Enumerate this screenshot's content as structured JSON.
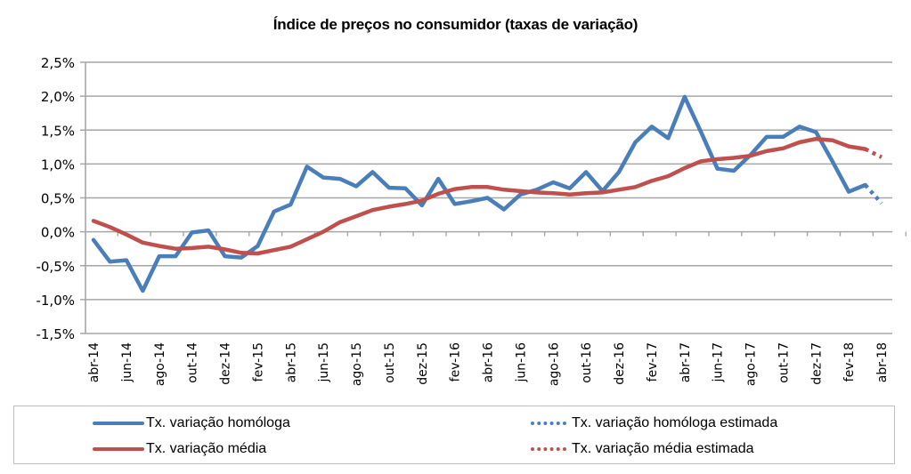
{
  "chart_data": {
    "type": "line",
    "title": "Índice de preços no consumidor  (taxas de variação)",
    "xlabel": "",
    "ylabel": "",
    "ylim": [
      -1.5,
      2.5
    ],
    "yticks": [
      "2,5%",
      "2,0%",
      "1,5%",
      "1,0%",
      "0,5%",
      "0,0%",
      "-0,5%",
      "-1,0%",
      "-1,5%"
    ],
    "ytick_values": [
      2.5,
      2.0,
      1.5,
      1.0,
      0.5,
      0.0,
      -0.5,
      -1.0,
      -1.5
    ],
    "grid": true,
    "x": [
      "abr-14",
      "mai-14",
      "jun-14",
      "jul-14",
      "ago-14",
      "set-14",
      "out-14",
      "nov-14",
      "dez-14",
      "jan-15",
      "fev-15",
      "mar-15",
      "abr-15",
      "mai-15",
      "jun-15",
      "jul-15",
      "ago-15",
      "set-15",
      "out-15",
      "nov-15",
      "dez-15",
      "jan-16",
      "fev-16",
      "mar-16",
      "abr-16",
      "mai-16",
      "jun-16",
      "jul-16",
      "ago-16",
      "set-16",
      "out-16",
      "nov-16",
      "dez-16",
      "jan-17",
      "fev-17",
      "mar-17",
      "abr-17",
      "mai-17",
      "jun-17",
      "jul-17",
      "ago-17",
      "set-17",
      "out-17",
      "nov-17",
      "dez-17",
      "jan-18",
      "fev-18",
      "mar-18",
      "abr-18"
    ],
    "xtick_labels": [
      "abr-14",
      "jun-14",
      "ago-14",
      "out-14",
      "dez-14",
      "fev-15",
      "abr-15",
      "jun-15",
      "ago-15",
      "out-15",
      "dez-15",
      "fev-16",
      "abr-16",
      "jun-16",
      "ago-16",
      "out-16",
      "dez-16",
      "fev-17",
      "abr-17",
      "jun-17",
      "ago-17",
      "out-17",
      "dez-17",
      "fev-18",
      "abr-18"
    ],
    "series": [
      {
        "name": "Tx. variação homóloga",
        "color": "#4a7ebb",
        "style": "solid",
        "values": [
          -0.12,
          -0.44,
          -0.42,
          -0.87,
          -0.36,
          -0.36,
          -0.01,
          0.02,
          -0.36,
          -0.38,
          -0.21,
          0.3,
          0.4,
          0.96,
          0.8,
          0.78,
          0.67,
          0.88,
          0.65,
          0.64,
          0.39,
          0.78,
          0.41,
          0.45,
          0.5,
          0.33,
          0.55,
          0.62,
          0.73,
          0.64,
          0.88,
          0.6,
          0.88,
          1.32,
          1.55,
          1.38,
          1.99,
          1.47,
          0.93,
          0.9,
          1.13,
          1.4,
          1.4,
          1.55,
          1.47,
          1.04,
          0.59,
          0.69,
          null
        ]
      },
      {
        "name": "Tx. variação homóloga estimada",
        "color": "#4a7ebb",
        "style": "dotted",
        "values": [
          null,
          null,
          null,
          null,
          null,
          null,
          null,
          null,
          null,
          null,
          null,
          null,
          null,
          null,
          null,
          null,
          null,
          null,
          null,
          null,
          null,
          null,
          null,
          null,
          null,
          null,
          null,
          null,
          null,
          null,
          null,
          null,
          null,
          null,
          null,
          null,
          null,
          null,
          null,
          null,
          null,
          null,
          null,
          null,
          null,
          null,
          null,
          0.69,
          0.42
        ]
      },
      {
        "name": "Tx. variação média",
        "color": "#c0504d",
        "style": "solid",
        "values": [
          0.16,
          0.07,
          -0.04,
          -0.16,
          -0.21,
          -0.25,
          -0.24,
          -0.22,
          -0.26,
          -0.31,
          -0.32,
          -0.27,
          -0.22,
          -0.11,
          0.0,
          0.14,
          0.23,
          0.32,
          0.37,
          0.41,
          0.46,
          0.56,
          0.63,
          0.66,
          0.66,
          0.62,
          0.6,
          0.58,
          0.57,
          0.55,
          0.57,
          0.58,
          0.62,
          0.66,
          0.75,
          0.82,
          0.94,
          1.04,
          1.07,
          1.09,
          1.12,
          1.19,
          1.23,
          1.32,
          1.37,
          1.35,
          1.26,
          1.22,
          null
        ]
      },
      {
        "name": "Tx. variação média estimada",
        "color": "#c0504d",
        "style": "dotted",
        "values": [
          null,
          null,
          null,
          null,
          null,
          null,
          null,
          null,
          null,
          null,
          null,
          null,
          null,
          null,
          null,
          null,
          null,
          null,
          null,
          null,
          null,
          null,
          null,
          null,
          null,
          null,
          null,
          null,
          null,
          null,
          null,
          null,
          null,
          null,
          null,
          null,
          null,
          null,
          null,
          null,
          null,
          null,
          null,
          null,
          null,
          null,
          null,
          1.22,
          1.1
        ]
      }
    ],
    "legend": {
      "placement": "bottom",
      "items": [
        "Tx. variação homóloga",
        "Tx. variação homóloga estimada",
        "Tx. variação média",
        "Tx. variação média  estimada"
      ]
    }
  }
}
